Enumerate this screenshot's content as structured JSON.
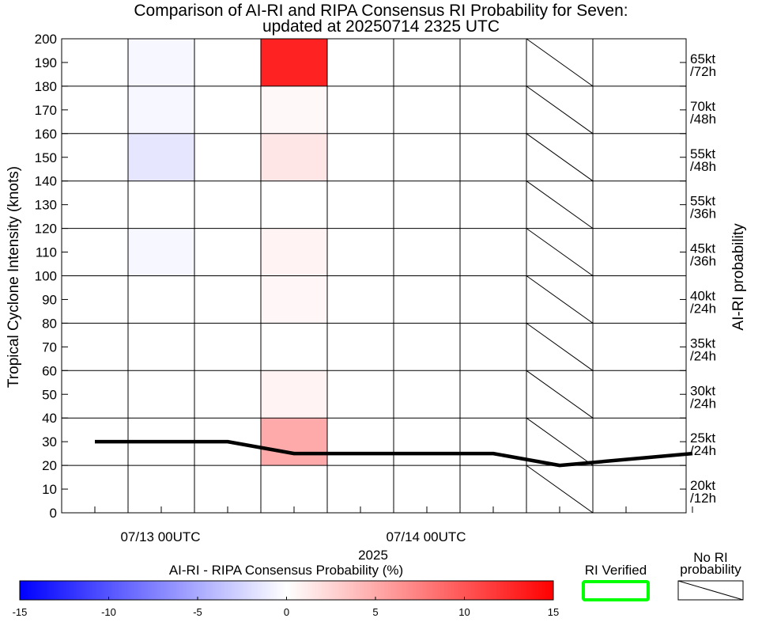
{
  "chart_data": {
    "type": "heatmap",
    "title": "Comparison of AI-RI and RIPA Consensus RI Probability for Seven:",
    "subtitle": "updated at 20250714 2325 UTC",
    "ylabel": "Tropical Cyclone Intensity (knots)",
    "xlabel": "2025",
    "right_label": "AI-RI probability",
    "ylim": [
      0,
      200
    ],
    "y_ticks": [
      "0",
      "10",
      "20",
      "30",
      "40",
      "50",
      "60",
      "70",
      "80",
      "90",
      "100",
      "110",
      "120",
      "130",
      "140",
      "150",
      "160",
      "170",
      "180",
      "190",
      "200"
    ],
    "x_ticks": [
      "07/13 00UTC",
      "07/14 00UTC"
    ],
    "row_labels": [
      {
        "kt": "65kt",
        "period": "/72h"
      },
      {
        "kt": "70kt",
        "period": "/48h"
      },
      {
        "kt": "55kt",
        "period": "/48h"
      },
      {
        "kt": "55kt",
        "period": "/36h"
      },
      {
        "kt": "45kt",
        "period": "/36h"
      },
      {
        "kt": "40kt",
        "period": "/24h"
      },
      {
        "kt": "35kt",
        "period": "/24h"
      },
      {
        "kt": "30kt",
        "period": "/24h"
      },
      {
        "kt": "25kt",
        "period": "/24h"
      },
      {
        "kt": "20kt",
        "period": "/12h"
      }
    ],
    "cells": [
      {
        "row": 0,
        "col": 1,
        "value": -0.5
      },
      {
        "row": 0,
        "col": 3,
        "value": 13
      },
      {
        "row": 1,
        "col": 1,
        "value": -0.5
      },
      {
        "row": 1,
        "col": 3,
        "value": 0.4
      },
      {
        "row": 2,
        "col": 1,
        "value": -1.5
      },
      {
        "row": 2,
        "col": 3,
        "value": 1.5
      },
      {
        "row": 4,
        "col": 1,
        "value": -0.5
      },
      {
        "row": 4,
        "col": 3,
        "value": 0.7
      },
      {
        "row": 5,
        "col": 3,
        "value": 0.5
      },
      {
        "row": 7,
        "col": 3,
        "value": 0.7
      },
      {
        "row": 8,
        "col": 3,
        "value": 5
      }
    ],
    "no_probability_column": 7,
    "intensity_series": {
      "name": "",
      "points": [
        [
          0,
          30
        ],
        [
          2,
          30
        ],
        [
          3,
          25
        ],
        [
          6,
          25
        ],
        [
          7,
          20
        ],
        [
          9,
          25
        ]
      ]
    },
    "colorbar": {
      "label": "AI-RI - RIPA Consensus Probability (%)",
      "range": [
        -15,
        15
      ],
      "ticks": [
        "-15",
        "-10",
        "-5",
        "0",
        "5",
        "10",
        "15"
      ],
      "colors": [
        "#0000ff",
        "#ffffff",
        "#ff0000"
      ]
    },
    "legend": {
      "verified_label": "RI Verified",
      "verified_color": "#00ff00",
      "no_ri_line1": "No RI",
      "no_ri_line2": "probability"
    }
  }
}
